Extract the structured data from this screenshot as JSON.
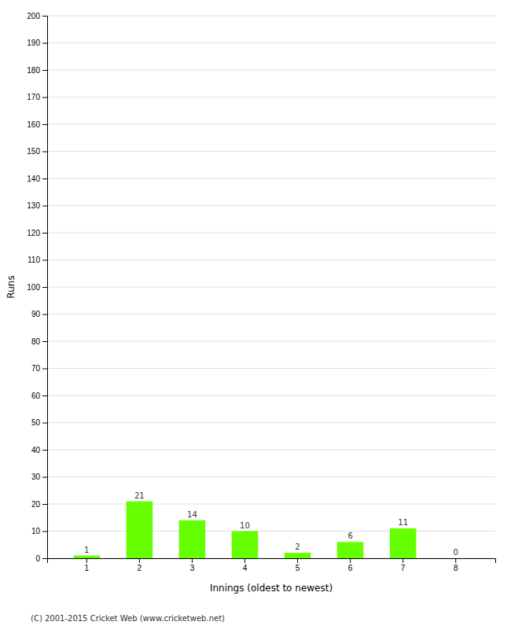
{
  "chart_data": {
    "type": "bar",
    "xlabel": "Innings (oldest to newest)",
    "ylabel": "Runs",
    "categories": [
      "1",
      "2",
      "3",
      "4",
      "5",
      "6",
      "7",
      "8"
    ],
    "values": [
      1,
      21,
      14,
      10,
      2,
      6,
      11,
      0
    ],
    "color": "#66ff00",
    "ylim": [
      0,
      200
    ],
    "yticks": [
      0,
      10,
      20,
      30,
      40,
      50,
      60,
      70,
      80,
      90,
      100,
      110,
      120,
      130,
      140,
      150,
      160,
      170,
      180,
      190,
      200
    ],
    "grid": true,
    "data_labels": true,
    "annotations": [
      "(C) 2001-2015 Cricket Web (www.cricketweb.net)"
    ]
  }
}
